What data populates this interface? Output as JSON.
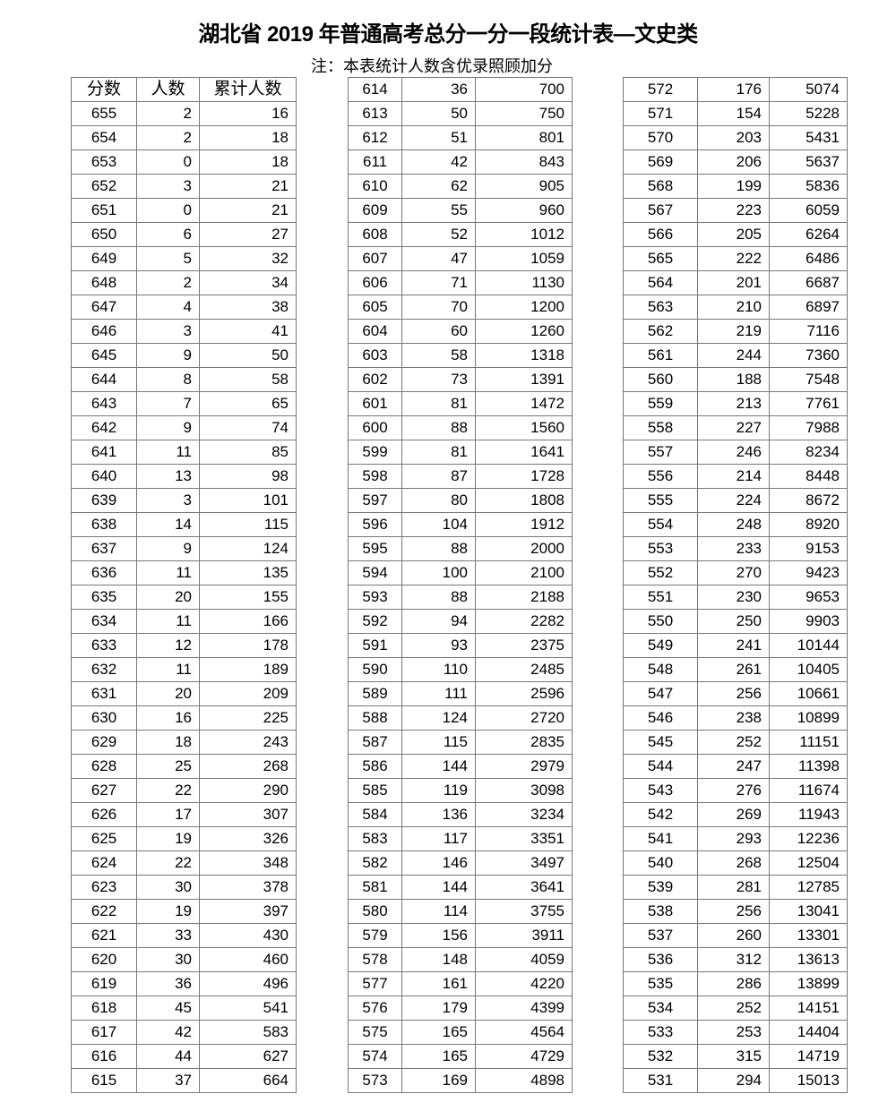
{
  "title": "湖北省 2019 年普通高考总分一分一段统计表—文史类",
  "note": "注：本表统计人数含优录照顾加分",
  "headers": [
    "分数",
    "人数",
    "累计人数"
  ],
  "tables": [
    [
      [
        655,
        2,
        16
      ],
      [
        654,
        2,
        18
      ],
      [
        653,
        0,
        18
      ],
      [
        652,
        3,
        21
      ],
      [
        651,
        0,
        21
      ],
      [
        650,
        6,
        27
      ],
      [
        649,
        5,
        32
      ],
      [
        648,
        2,
        34
      ],
      [
        647,
        4,
        38
      ],
      [
        646,
        3,
        41
      ],
      [
        645,
        9,
        50
      ],
      [
        644,
        8,
        58
      ],
      [
        643,
        7,
        65
      ],
      [
        642,
        9,
        74
      ],
      [
        641,
        11,
        85
      ],
      [
        640,
        13,
        98
      ],
      [
        639,
        3,
        101
      ],
      [
        638,
        14,
        115
      ],
      [
        637,
        9,
        124
      ],
      [
        636,
        11,
        135
      ],
      [
        635,
        20,
        155
      ],
      [
        634,
        11,
        166
      ],
      [
        633,
        12,
        178
      ],
      [
        632,
        11,
        189
      ],
      [
        631,
        20,
        209
      ],
      [
        630,
        16,
        225
      ],
      [
        629,
        18,
        243
      ],
      [
        628,
        25,
        268
      ],
      [
        627,
        22,
        290
      ],
      [
        626,
        17,
        307
      ],
      [
        625,
        19,
        326
      ],
      [
        624,
        22,
        348
      ],
      [
        623,
        30,
        378
      ],
      [
        622,
        19,
        397
      ],
      [
        621,
        33,
        430
      ],
      [
        620,
        30,
        460
      ],
      [
        619,
        36,
        496
      ],
      [
        618,
        45,
        541
      ],
      [
        617,
        42,
        583
      ],
      [
        616,
        44,
        627
      ],
      [
        615,
        37,
        664
      ]
    ],
    [
      [
        614,
        36,
        700
      ],
      [
        613,
        50,
        750
      ],
      [
        612,
        51,
        801
      ],
      [
        611,
        42,
        843
      ],
      [
        610,
        62,
        905
      ],
      [
        609,
        55,
        960
      ],
      [
        608,
        52,
        1012
      ],
      [
        607,
        47,
        1059
      ],
      [
        606,
        71,
        1130
      ],
      [
        605,
        70,
        1200
      ],
      [
        604,
        60,
        1260
      ],
      [
        603,
        58,
        1318
      ],
      [
        602,
        73,
        1391
      ],
      [
        601,
        81,
        1472
      ],
      [
        600,
        88,
        1560
      ],
      [
        599,
        81,
        1641
      ],
      [
        598,
        87,
        1728
      ],
      [
        597,
        80,
        1808
      ],
      [
        596,
        104,
        1912
      ],
      [
        595,
        88,
        2000
      ],
      [
        594,
        100,
        2100
      ],
      [
        593,
        88,
        2188
      ],
      [
        592,
        94,
        2282
      ],
      [
        591,
        93,
        2375
      ],
      [
        590,
        110,
        2485
      ],
      [
        589,
        111,
        2596
      ],
      [
        588,
        124,
        2720
      ],
      [
        587,
        115,
        2835
      ],
      [
        586,
        144,
        2979
      ],
      [
        585,
        119,
        3098
      ],
      [
        584,
        136,
        3234
      ],
      [
        583,
        117,
        3351
      ],
      [
        582,
        146,
        3497
      ],
      [
        581,
        144,
        3641
      ],
      [
        580,
        114,
        3755
      ],
      [
        579,
        156,
        3911
      ],
      [
        578,
        148,
        4059
      ],
      [
        577,
        161,
        4220
      ],
      [
        576,
        179,
        4399
      ],
      [
        575,
        165,
        4564
      ],
      [
        574,
        165,
        4729
      ],
      [
        573,
        169,
        4898
      ]
    ],
    [
      [
        572,
        176,
        5074
      ],
      [
        571,
        154,
        5228
      ],
      [
        570,
        203,
        5431
      ],
      [
        569,
        206,
        5637
      ],
      [
        568,
        199,
        5836
      ],
      [
        567,
        223,
        6059
      ],
      [
        566,
        205,
        6264
      ],
      [
        565,
        222,
        6486
      ],
      [
        564,
        201,
        6687
      ],
      [
        563,
        210,
        6897
      ],
      [
        562,
        219,
        7116
      ],
      [
        561,
        244,
        7360
      ],
      [
        560,
        188,
        7548
      ],
      [
        559,
        213,
        7761
      ],
      [
        558,
        227,
        7988
      ],
      [
        557,
        246,
        8234
      ],
      [
        556,
        214,
        8448
      ],
      [
        555,
        224,
        8672
      ],
      [
        554,
        248,
        8920
      ],
      [
        553,
        233,
        9153
      ],
      [
        552,
        270,
        9423
      ],
      [
        551,
        230,
        9653
      ],
      [
        550,
        250,
        9903
      ],
      [
        549,
        241,
        10144
      ],
      [
        548,
        261,
        10405
      ],
      [
        547,
        256,
        10661
      ],
      [
        546,
        238,
        10899
      ],
      [
        545,
        252,
        11151
      ],
      [
        544,
        247,
        11398
      ],
      [
        543,
        276,
        11674
      ],
      [
        542,
        269,
        11943
      ],
      [
        541,
        293,
        12236
      ],
      [
        540,
        268,
        12504
      ],
      [
        539,
        281,
        12785
      ],
      [
        538,
        256,
        13041
      ],
      [
        537,
        260,
        13301
      ],
      [
        536,
        312,
        13613
      ],
      [
        535,
        286,
        13899
      ],
      [
        534,
        252,
        14151
      ],
      [
        533,
        253,
        14404
      ],
      [
        532,
        315,
        14719
      ],
      [
        531,
        294,
        15013
      ]
    ]
  ]
}
